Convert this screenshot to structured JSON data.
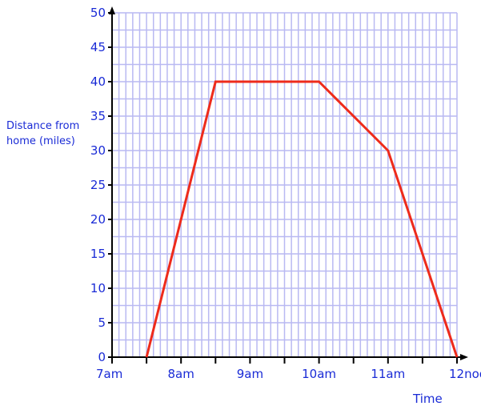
{
  "chart_data": {
    "type": "line",
    "xlabel": "Time",
    "ylabel": "Distance from home (miles)",
    "ylabel_lines": [
      "Distance from",
      "home (miles)"
    ],
    "x_tick_labels": [
      "7am",
      "8am",
      "9am",
      "10am",
      "11am",
      "12noon"
    ],
    "y_ticks": [
      0,
      5,
      10,
      15,
      20,
      25,
      30,
      35,
      40,
      45,
      50
    ],
    "xlim": [
      7,
      12
    ],
    "ylim": [
      0,
      50
    ],
    "grid": true,
    "series": [
      {
        "x": [
          7.5,
          8.5,
          10,
          11,
          12
        ],
        "y": [
          0,
          40,
          40,
          30,
          0
        ]
      }
    ],
    "colors": {
      "grid": "#b9b9f2",
      "axis": "#000000",
      "line": "#ee2b1b",
      "text": "#1a2bd6"
    }
  }
}
